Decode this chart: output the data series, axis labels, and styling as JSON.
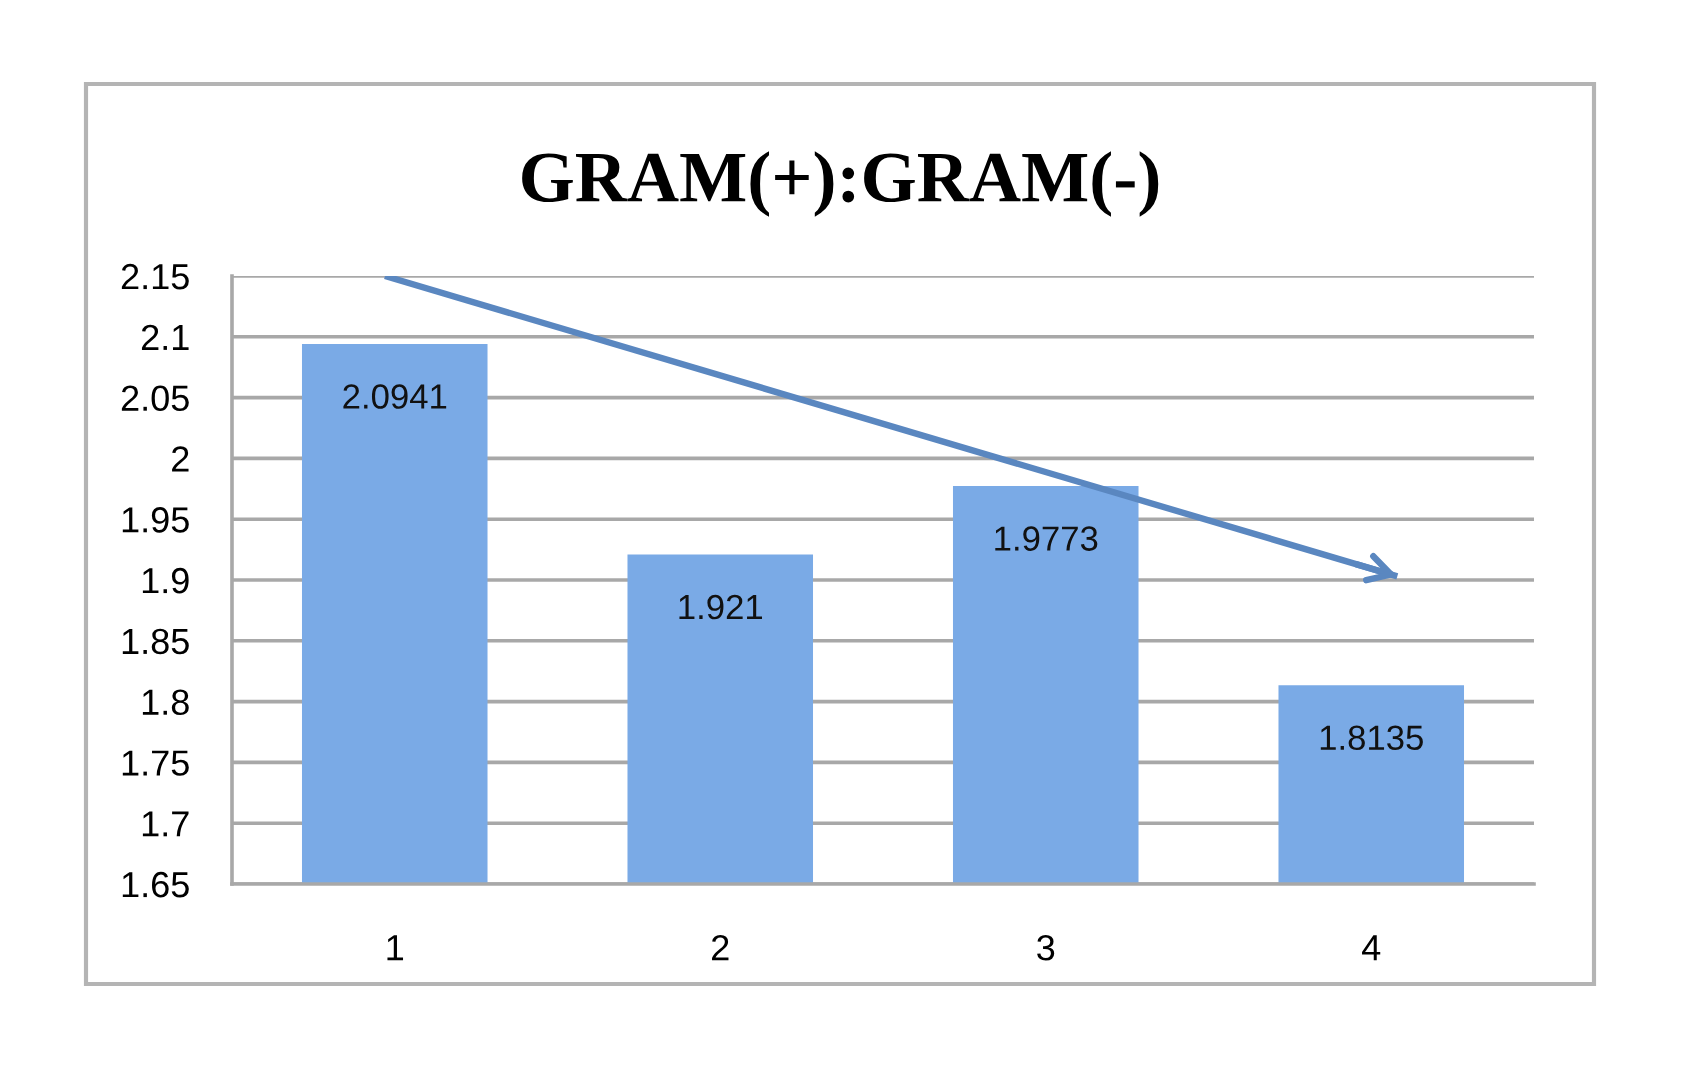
{
  "chart_data": {
    "type": "bar",
    "title": "GRAM(+):GRAM(-)",
    "x": [
      1,
      2,
      3,
      4
    ],
    "series": [
      {
        "color": "#7aaae6",
        "values": [
          2.0941,
          1.921,
          1.9773,
          1.8135
        ],
        "value_labels": [
          "2.0941",
          "1.921",
          "1.9773",
          "1.8135"
        ]
      },
      {
        "type": "line",
        "color": "#5a87c0",
        "x": [
          0.97,
          4.08
        ],
        "values": [
          2.15,
          1.903
        ]
      }
    ],
    "xlim": [
      0.5,
      4.5
    ],
    "xticks": [
      1,
      2,
      3,
      4
    ],
    "ylim": [
      1.65,
      2.15
    ],
    "yticks": [
      1.65,
      1.7,
      1.75,
      1.8,
      1.85,
      1.9,
      1.95,
      2,
      2.05,
      2.1,
      2.15
    ],
    "grid": "y"
  }
}
